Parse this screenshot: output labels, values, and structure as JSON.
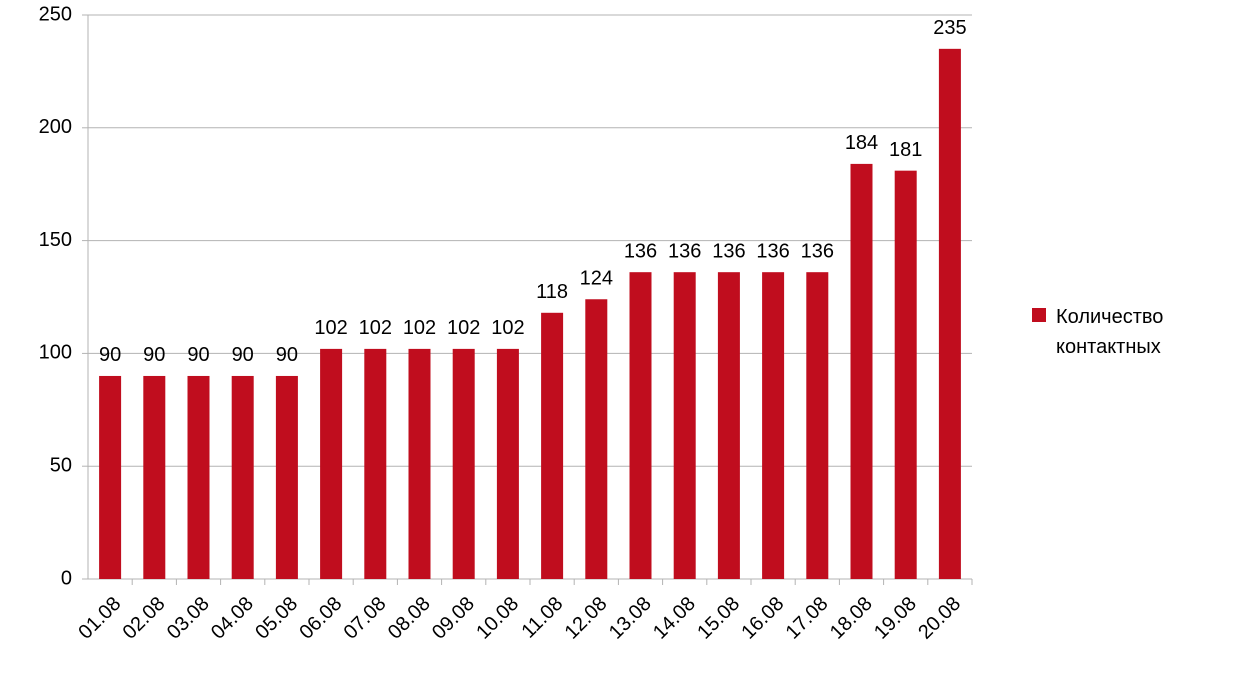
{
  "chart_data": {
    "type": "bar",
    "categories": [
      "01.08",
      "02.08",
      "03.08",
      "04.08",
      "05.08",
      "06.08",
      "07.08",
      "08.08",
      "09.08",
      "10.08",
      "11.08",
      "12.08",
      "13.08",
      "14.08",
      "15.08",
      "16.08",
      "17.08",
      "18.08",
      "19.08",
      "20.08"
    ],
    "series": [
      {
        "name": "Количество контактных",
        "color": "#c00d1e",
        "values": [
          90,
          90,
          90,
          90,
          90,
          102,
          102,
          102,
          102,
          102,
          118,
          124,
          136,
          136,
          136,
          136,
          136,
          184,
          181,
          235
        ]
      }
    ],
    "ylim": [
      0,
      250
    ],
    "yticks": [
      0,
      50,
      100,
      150,
      200,
      250
    ],
    "grid": true,
    "legend": "right"
  }
}
